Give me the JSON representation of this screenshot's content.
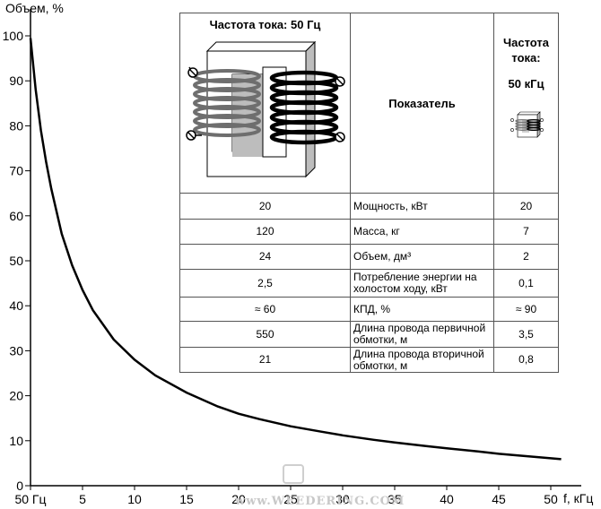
{
  "chart_data": {
    "type": "line",
    "ylabel": "Объем, %",
    "xlabel": "f, кГц",
    "xlim": [
      0,
      52
    ],
    "ylim": [
      0,
      100
    ],
    "x_tick_labels": [
      {
        "x": 0,
        "label": "50 Гц"
      },
      {
        "x": 5,
        "label": "5"
      },
      {
        "x": 10,
        "label": "10"
      },
      {
        "x": 15,
        "label": "15"
      },
      {
        "x": 20,
        "label": "20"
      },
      {
        "x": 25,
        "label": "25"
      },
      {
        "x": 30,
        "label": "30"
      },
      {
        "x": 35,
        "label": "35"
      },
      {
        "x": 40,
        "label": "40"
      },
      {
        "x": 45,
        "label": "45"
      },
      {
        "x": 50,
        "label": "50"
      }
    ],
    "y_ticks": [
      0,
      10,
      20,
      30,
      40,
      50,
      60,
      70,
      80,
      90,
      100
    ],
    "series": [
      {
        "x": [
          0,
          0.5,
          1,
          1.5,
          2,
          3,
          4,
          5,
          6,
          8,
          10,
          12,
          15,
          18,
          20,
          22,
          25,
          28,
          30,
          33,
          35,
          38,
          40,
          43,
          45,
          48,
          50,
          51
        ],
        "values": [
          99.5,
          88,
          79,
          72,
          66,
          56,
          49,
          43.5,
          39,
          32.5,
          28,
          24.5,
          20.7,
          17.6,
          16,
          14.8,
          13.2,
          12,
          11.2,
          10.2,
          9.6,
          8.8,
          8.3,
          7.6,
          7.1,
          6.5,
          6.1,
          5.9
        ]
      }
    ],
    "grid": false,
    "legend": "none"
  },
  "table": {
    "header": {
      "col1_title": "Частота тока: 50 Гц",
      "col2_title": "Показатель",
      "col3_title_line1": "Частота тока:",
      "col3_title_line2": "50 кГц",
      "col1_image": "transformer-50hz-icon",
      "col3_image": "transformer-50khz-icon"
    },
    "rows": [
      {
        "v50": "20",
        "name": "Мощность, кВт",
        "v50k": "20"
      },
      {
        "v50": "120",
        "name": "Масса, кг",
        "v50k": "7"
      },
      {
        "v50": "24",
        "name": "Объем, дм³",
        "v50k": "2"
      },
      {
        "v50": "2,5",
        "name": "Потребление энергии на холостом ходу, кВт",
        "v50k": "0,1"
      },
      {
        "v50": "≈ 60",
        "name": "КПД, %",
        "v50k": "≈ 90"
      },
      {
        "v50": "550",
        "name": "Длина провода первичной обмотки, м",
        "v50k": "3,5"
      },
      {
        "v50": "21",
        "name": "Длина провода вторичной обмотки, м",
        "v50k": "0,8"
      }
    ]
  },
  "watermark": "www.WEEDERING.COM"
}
